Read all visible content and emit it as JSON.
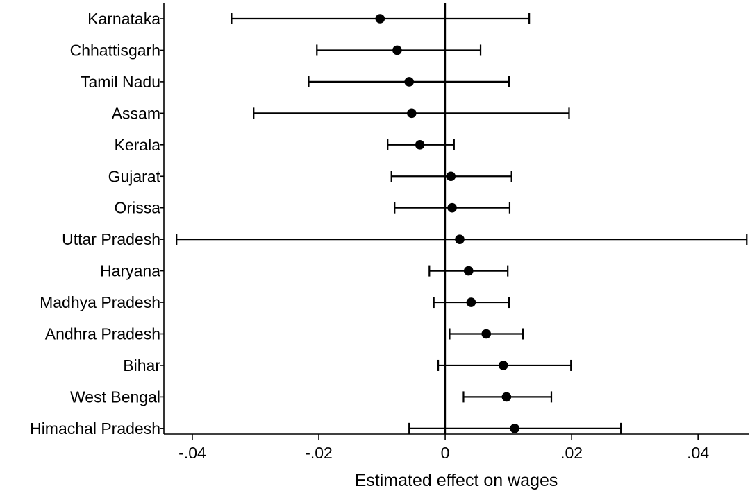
{
  "chart_data": {
    "type": "scatter",
    "subtype": "coefficient-plot-with-confidence-intervals",
    "title": "",
    "xlabel": "Estimated effect on wages",
    "ylabel": "",
    "xlim": [
      -0.0445,
      0.048
    ],
    "xticks": [
      -0.04,
      -0.02,
      0,
      0.02,
      0.04
    ],
    "xtick_labels": [
      "-.04",
      "-.02",
      "0",
      ".02",
      ".04"
    ],
    "reference_line_x": 0,
    "grid": false,
    "legend": "none",
    "categories": [
      "Karnataka",
      "Chhattisgarh",
      "Tamil Nadu",
      "Assam",
      "Kerala",
      "Gujarat",
      "Orissa",
      "Uttar Pradesh",
      "Haryana",
      "Madhya Pradesh",
      "Andhra Pradesh",
      "Bihar",
      "West Bengal",
      "Himachal Pradesh"
    ],
    "estimates": [
      -0.0103,
      -0.0076,
      -0.0057,
      -0.0053,
      -0.004,
      0.0009,
      0.0011,
      0.0023,
      0.0037,
      0.0041,
      0.0065,
      0.0092,
      0.0097,
      0.011
    ],
    "ci_lower": [
      -0.0338,
      -0.0203,
      -0.0216,
      -0.0303,
      -0.0091,
      -0.0085,
      -0.008,
      -0.0425,
      -0.0025,
      -0.0018,
      0.0007,
      -0.0011,
      0.0029,
      -0.0057
    ],
    "ci_upper": [
      0.0133,
      0.0056,
      0.0101,
      0.0196,
      0.0014,
      0.0105,
      0.0102,
      0.0477,
      0.0099,
      0.0101,
      0.0123,
      0.0199,
      0.0168,
      0.0278
    ],
    "colors": {
      "marker": "#000000",
      "line": "#000000",
      "background": "#ffffff"
    }
  }
}
